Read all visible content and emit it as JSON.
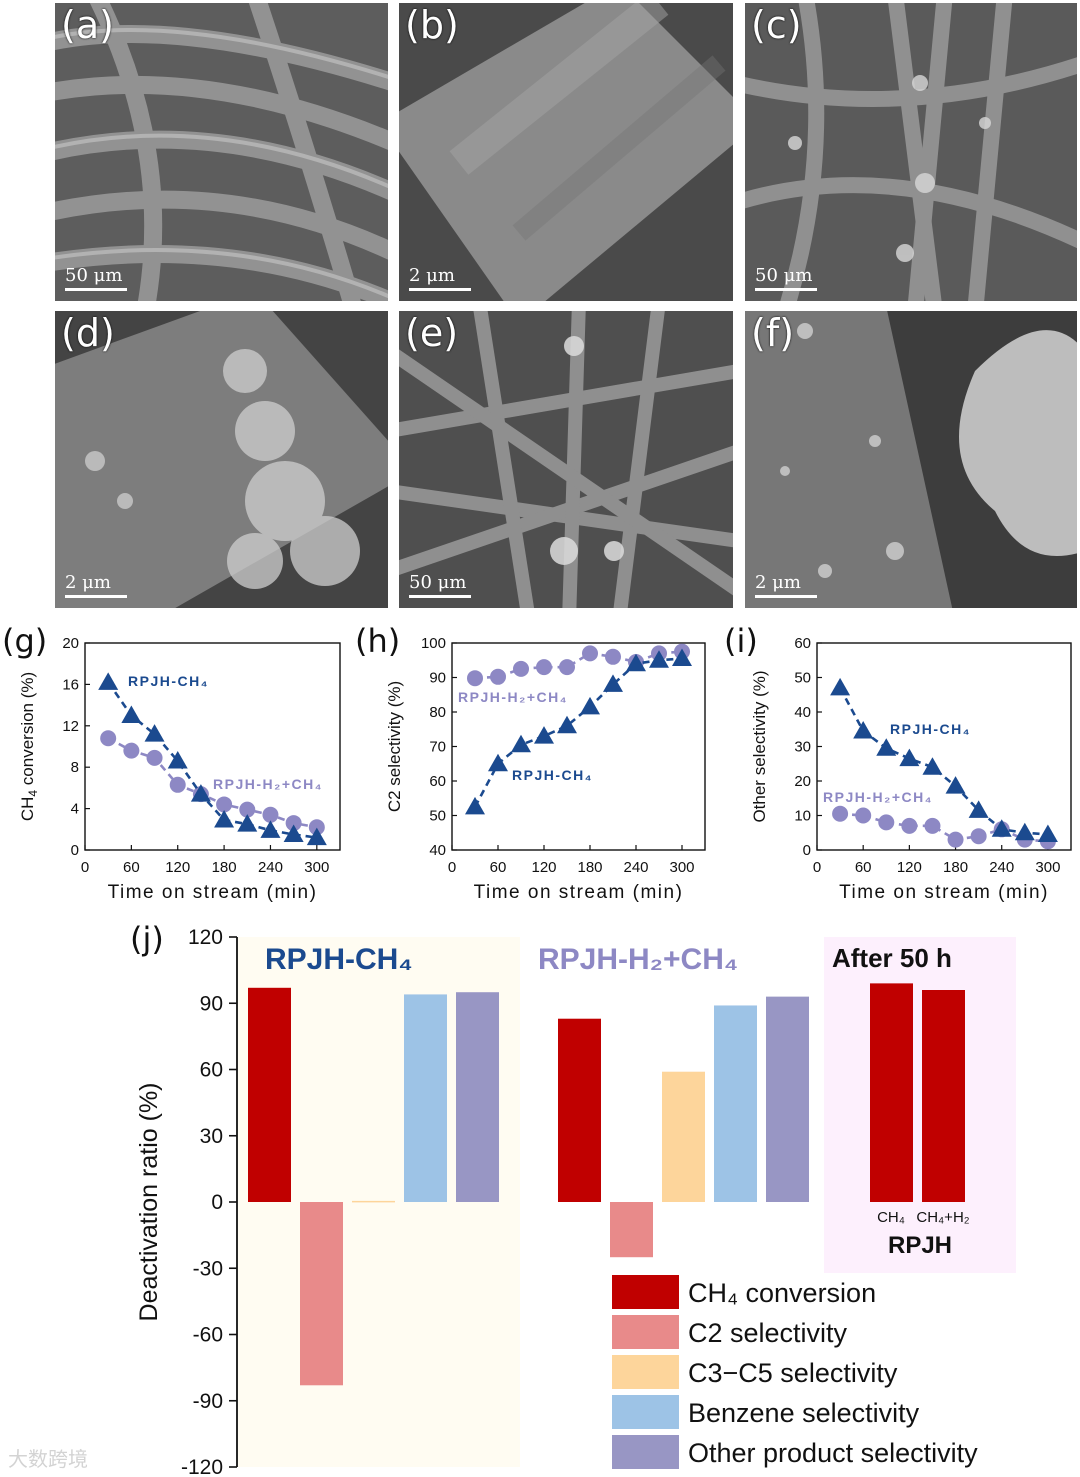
{
  "sem_panels": [
    {
      "letter": "(a)",
      "scale": "50 μm"
    },
    {
      "letter": "(b)",
      "scale": "2 μm"
    },
    {
      "letter": "(c)",
      "scale": "50 μm"
    },
    {
      "letter": "(d)",
      "scale": "2 μm"
    },
    {
      "letter": "(e)",
      "scale": "50 μm"
    },
    {
      "letter": "(f)",
      "scale": "2 μm"
    }
  ],
  "chart_data": [
    {
      "panel": "(g)",
      "type": "line",
      "xlabel": "Time on stream (min)",
      "ylabel": "CH4 conversion (%)",
      "xlim": [
        0,
        330
      ],
      "ylim": [
        0,
        20
      ],
      "xticks": [
        0,
        60,
        120,
        180,
        240,
        300
      ],
      "yticks": [
        0,
        4,
        8,
        12,
        16,
        20
      ],
      "series": [
        {
          "name": "RPJH-CH4",
          "marker": "triangle",
          "color": "#1b4a8f",
          "x": [
            30,
            60,
            90,
            120,
            150,
            180,
            210,
            240,
            270,
            300
          ],
          "y": [
            16.2,
            13.0,
            11.2,
            8.6,
            5.4,
            2.9,
            2.5,
            1.9,
            1.5,
            1.2
          ]
        },
        {
          "name": "RPJH-H2+CH4",
          "marker": "circle",
          "color": "#8d88c4",
          "x": [
            30,
            60,
            90,
            120,
            150,
            180,
            210,
            240,
            270,
            300
          ],
          "y": [
            10.8,
            9.6,
            8.9,
            6.3,
            5.4,
            4.4,
            3.9,
            3.4,
            2.6,
            2.2
          ]
        }
      ],
      "labels": [
        {
          "text": "RPJH-CH₄",
          "series": 0
        },
        {
          "text": "RPJH-H₂+CH₄",
          "series": 1
        }
      ]
    },
    {
      "panel": "(h)",
      "type": "line",
      "xlabel": "Time on stream (min)",
      "ylabel": "C2 selectivity (%)",
      "xlim": [
        0,
        330
      ],
      "ylim": [
        40,
        100
      ],
      "xticks": [
        0,
        60,
        120,
        180,
        240,
        300
      ],
      "yticks": [
        40,
        50,
        60,
        70,
        80,
        90,
        100
      ],
      "series": [
        {
          "name": "RPJH-CH4",
          "marker": "triangle",
          "color": "#1b4a8f",
          "x": [
            30,
            60,
            90,
            120,
            150,
            180,
            210,
            240,
            270,
            300
          ],
          "y": [
            52.5,
            65,
            70.5,
            73,
            76,
            81.5,
            88,
            94,
            95,
            95.5
          ]
        },
        {
          "name": "RPJH-H2+CH4",
          "marker": "circle",
          "color": "#8d88c4",
          "x": [
            30,
            60,
            90,
            120,
            150,
            180,
            210,
            240,
            270,
            300
          ],
          "y": [
            89.8,
            90.2,
            92.5,
            93,
            93,
            97,
            96,
            94.5,
            97,
            97.5
          ]
        }
      ],
      "labels": [
        {
          "text": "RPJH-H₂+CH₄",
          "series": 1
        },
        {
          "text": "RPJH-CH₄",
          "series": 0
        }
      ]
    },
    {
      "panel": "(i)",
      "type": "line",
      "xlabel": "Time on stream (min)",
      "ylabel": "Other selectivity (%)",
      "xlim": [
        0,
        330
      ],
      "ylim": [
        0,
        60
      ],
      "xticks": [
        0,
        60,
        120,
        180,
        240,
        300
      ],
      "yticks": [
        0,
        10,
        20,
        30,
        40,
        50,
        60
      ],
      "series": [
        {
          "name": "RPJH-CH4",
          "marker": "triangle",
          "color": "#1b4a8f",
          "x": [
            30,
            60,
            90,
            120,
            150,
            180,
            210,
            240,
            270,
            300
          ],
          "y": [
            47,
            34.5,
            29.5,
            26.5,
            24,
            18.5,
            11.5,
            6,
            5,
            4.5
          ]
        },
        {
          "name": "RPJH-H2+CH4",
          "marker": "circle",
          "color": "#8d88c4",
          "x": [
            30,
            60,
            90,
            120,
            150,
            180,
            210,
            240,
            270,
            300
          ],
          "y": [
            10.5,
            10,
            8,
            7,
            7,
            3,
            4,
            6,
            3,
            2.5
          ]
        }
      ],
      "labels": [
        {
          "text": "RPJH-CH₄",
          "series": 0
        },
        {
          "text": "RPJH-H₂+CH₄",
          "series": 1
        }
      ]
    },
    {
      "panel": "(j)",
      "type": "bar",
      "ylabel": "Deactivation ratio (%)",
      "ylim": [
        -120,
        120
      ],
      "yticks": [
        -120,
        -90,
        -60,
        -30,
        0,
        30,
        60,
        90,
        120
      ],
      "groups": [
        {
          "title": "RPJH-CH₄",
          "title_color": "#1b4a8f",
          "background": "#fffcf2",
          "values": [
            97,
            -83,
            0.5,
            94,
            95
          ]
        },
        {
          "title": "RPJH-H₂+CH₄",
          "title_color": "#8d88c4",
          "background": "#ffffff",
          "values": [
            83,
            -25,
            59,
            89,
            93
          ]
        }
      ],
      "after_panel": {
        "title": "After 50 h",
        "background": "#fdf0fd",
        "bars": [
          {
            "label": "CH₄",
            "value": 99
          },
          {
            "label": "CH₄+H₂",
            "value": 96
          }
        ],
        "footer": "RPJH"
      },
      "legend": [
        {
          "label": "CH₄ conversion",
          "color": "#c00000"
        },
        {
          "label": "C2 selectivity",
          "color": "#e88a8a"
        },
        {
          "label": "C3−C5 selectivity",
          "color": "#fdd59b"
        },
        {
          "label": "Benzene selectivity",
          "color": "#9dc3e6"
        },
        {
          "label": "Other product selectivity",
          "color": "#9896c4"
        }
      ]
    }
  ],
  "watermark": "大数跨境"
}
